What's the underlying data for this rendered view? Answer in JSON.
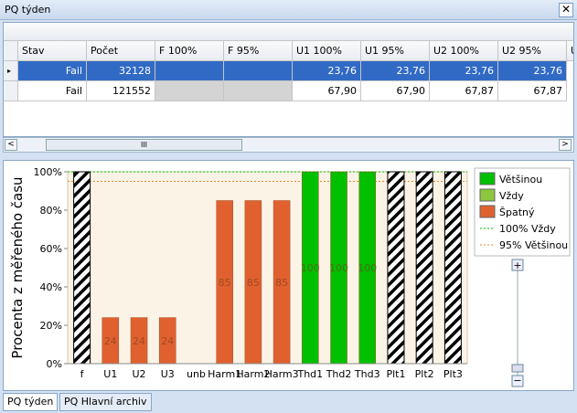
{
  "window": {
    "title": "PQ týden"
  },
  "table": {
    "columns": [
      "Stav",
      "Počet",
      "F 100%",
      "F 95%",
      "U1 100%",
      "U1 95%",
      "U2 100%",
      "U2 95%",
      "U"
    ],
    "rows": [
      [
        "Fail",
        "32128",
        null,
        null,
        "23,76",
        "23,76",
        "23,76",
        "23,76"
      ],
      [
        "Fail",
        "121552",
        null,
        null,
        "67,90",
        "67,90",
        "67,87",
        "67,87"
      ]
    ]
  },
  "chart_data": {
    "type": "bar",
    "y_label": "Procenta z měřeného času",
    "categories": [
      "f",
      "U1",
      "U2",
      "U3",
      "unb",
      "Harm1",
      "Harm2",
      "Harm3",
      "Thd1",
      "Thd2",
      "Thd3",
      "Plt1",
      "Plt2",
      "Plt3"
    ],
    "series": [
      {
        "pattern": "hatch",
        "color": "#000000",
        "values": [
          100,
          null,
          null,
          null,
          null,
          null,
          null,
          null,
          null,
          null,
          null,
          100,
          100,
          100
        ]
      },
      {
        "name": "Většinou",
        "color": "#00c000",
        "values": [
          null,
          null,
          null,
          null,
          null,
          null,
          null,
          null,
          100,
          100,
          100,
          null,
          null,
          null
        ]
      },
      {
        "name": "Vždy",
        "color": "#8dc63f",
        "values": [
          null,
          null,
          null,
          null,
          null,
          null,
          null,
          null,
          null,
          null,
          null,
          null,
          null,
          null
        ]
      },
      {
        "name": "Špatný",
        "color": "#e0612f",
        "values": [
          null,
          24,
          24,
          24,
          null,
          85,
          85,
          85,
          null,
          null,
          null,
          null,
          null,
          null
        ]
      }
    ],
    "reference_lines": [
      {
        "name": "100% Vždy",
        "value": 100,
        "color": "#00c000"
      },
      {
        "name": "95% Většinou",
        "value": 95,
        "color": "#e08a2a"
      }
    ],
    "ylim": [
      0,
      100
    ],
    "yticks": [
      {
        "value": 0,
        "label": "0%"
      },
      {
        "value": 20,
        "label": "20%"
      },
      {
        "value": 40,
        "label": "40%"
      },
      {
        "value": 60,
        "label": "60%"
      },
      {
        "value": 80,
        "label": "80%"
      },
      {
        "value": 100,
        "label": "100%"
      }
    ]
  },
  "tabs": [
    "PQ týden",
    "PQ Hlavní archiv"
  ]
}
